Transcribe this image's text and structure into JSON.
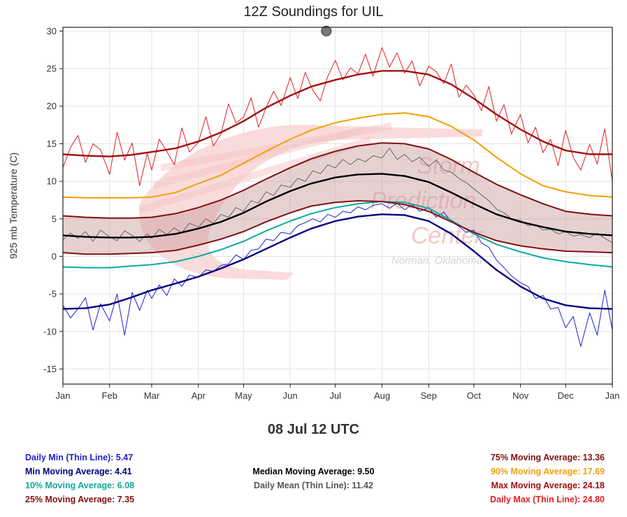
{
  "chart_data": {
    "type": "line",
    "title": "12Z Soundings for UIL",
    "subtitle": "08 Jul 12 UTC",
    "ylabel": "925 mb Temperature (C)",
    "xlabel": "",
    "ylim": [
      -17,
      30.5
    ],
    "yticks": [
      -15,
      -10,
      -5,
      0,
      5,
      10,
      15,
      20,
      25,
      30
    ],
    "xlim_day": [
      0,
      365
    ],
    "months": [
      "Jan",
      "Feb",
      "Mar",
      "Apr",
      "May",
      "Jun",
      "Jul",
      "Aug",
      "Sep",
      "Oct",
      "Nov",
      "Dec",
      "Jan"
    ],
    "grid": true,
    "marker": {
      "day": 175,
      "value": 30.0
    },
    "watermark": [
      "Storm",
      "Prediction",
      "Center",
      "Norman, Oklahoma"
    ],
    "colors": {
      "daily_max": "#e02020",
      "max_ma": "#a01010",
      "p90": "#f5a000",
      "p75": "#801010",
      "median": "#000000",
      "daily_mean": "#666666",
      "p25": "#801010",
      "band": "#c89a9a",
      "p10": "#10a8a0",
      "min_ma": "#000080",
      "daily_min": "#2020d0"
    },
    "series": [
      {
        "name": "Max Moving Average",
        "key": "max_ma",
        "x": [
          0,
          15,
          31,
          45,
          59,
          75,
          90,
          105,
          120,
          135,
          151,
          165,
          181,
          196,
          212,
          227,
          243,
          258,
          273,
          288,
          304,
          319,
          334,
          350,
          365
        ],
        "values": [
          13.6,
          13.4,
          13.3,
          13.5,
          13.9,
          14.4,
          15.3,
          16.5,
          18.0,
          19.8,
          21.4,
          22.6,
          23.5,
          24.2,
          24.7,
          24.7,
          24.2,
          22.9,
          21.0,
          18.9,
          16.9,
          15.3,
          14.1,
          13.6,
          13.6
        ]
      },
      {
        "name": "90% Moving Average",
        "key": "p90",
        "x": [
          0,
          15,
          31,
          45,
          59,
          75,
          90,
          105,
          120,
          135,
          151,
          165,
          181,
          196,
          212,
          227,
          243,
          258,
          273,
          288,
          304,
          319,
          334,
          350,
          365
        ],
        "values": [
          7.9,
          7.8,
          7.8,
          7.8,
          7.9,
          8.5,
          9.7,
          10.8,
          12.4,
          14.0,
          15.6,
          16.8,
          17.8,
          18.4,
          18.9,
          19.1,
          18.6,
          17.3,
          15.5,
          13.2,
          11.0,
          9.4,
          8.6,
          8.1,
          7.9
        ]
      },
      {
        "name": "75% Moving Average",
        "key": "p75",
        "x": [
          0,
          15,
          31,
          45,
          59,
          75,
          90,
          105,
          120,
          135,
          151,
          165,
          181,
          196,
          212,
          227,
          243,
          258,
          273,
          288,
          304,
          319,
          334,
          350,
          365
        ],
        "values": [
          5.4,
          5.2,
          5.1,
          5.1,
          5.2,
          5.7,
          6.5,
          7.5,
          8.8,
          10.3,
          11.8,
          13.0,
          14.0,
          14.7,
          15.1,
          15.0,
          14.3,
          12.9,
          11.2,
          9.6,
          8.2,
          7.0,
          6.0,
          5.6,
          5.4
        ]
      },
      {
        "name": "Median Moving Average",
        "key": "median",
        "x": [
          0,
          15,
          31,
          45,
          59,
          75,
          90,
          105,
          120,
          135,
          151,
          165,
          181,
          196,
          212,
          227,
          243,
          258,
          273,
          288,
          304,
          319,
          334,
          350,
          365
        ],
        "values": [
          2.8,
          2.6,
          2.5,
          2.5,
          2.6,
          3.0,
          3.7,
          4.6,
          5.8,
          7.3,
          8.7,
          9.7,
          10.5,
          10.9,
          11.0,
          10.7,
          9.9,
          8.5,
          7.0,
          5.6,
          4.6,
          3.9,
          3.3,
          3.0,
          2.8
        ]
      },
      {
        "name": "25% Moving Average",
        "key": "p25",
        "x": [
          0,
          15,
          31,
          45,
          59,
          75,
          90,
          105,
          120,
          135,
          151,
          165,
          181,
          196,
          212,
          227,
          243,
          258,
          273,
          288,
          304,
          319,
          334,
          350,
          365
        ],
        "values": [
          0.5,
          0.3,
          0.3,
          0.4,
          0.5,
          0.8,
          1.5,
          2.3,
          3.3,
          4.6,
          5.8,
          6.7,
          7.2,
          7.4,
          7.3,
          6.9,
          6.0,
          4.6,
          3.2,
          2.1,
          1.4,
          1.0,
          0.7,
          0.6,
          0.5
        ]
      },
      {
        "name": "10% Moving Average",
        "key": "p10",
        "x": [
          0,
          15,
          31,
          45,
          59,
          75,
          90,
          105,
          120,
          135,
          151,
          165,
          181,
          196,
          212,
          227,
          243,
          258,
          273,
          288,
          304,
          319,
          334,
          350,
          365
        ],
        "values": [
          -1.4,
          -1.5,
          -1.5,
          -1.3,
          -1.1,
          -0.7,
          0.0,
          0.9,
          2.0,
          3.4,
          4.7,
          5.7,
          6.5,
          7.0,
          7.3,
          7.2,
          6.4,
          4.8,
          3.0,
          1.6,
          0.6,
          -0.2,
          -0.7,
          -1.1,
          -1.4
        ]
      },
      {
        "name": "Min Moving Average",
        "key": "min_ma",
        "x": [
          0,
          15,
          31,
          45,
          59,
          75,
          90,
          105,
          120,
          135,
          151,
          165,
          181,
          196,
          212,
          227,
          243,
          258,
          273,
          288,
          304,
          319,
          334,
          350,
          365
        ],
        "values": [
          -7.0,
          -6.9,
          -6.4,
          -5.5,
          -4.5,
          -3.6,
          -2.7,
          -1.6,
          -0.4,
          1.0,
          2.5,
          3.7,
          4.7,
          5.3,
          5.6,
          5.5,
          4.7,
          3.0,
          0.7,
          -1.8,
          -4.0,
          -5.6,
          -6.5,
          -6.9,
          -7.0
        ]
      },
      {
        "name": "Daily Max (Thin Line)",
        "key": "daily_max",
        "x": [
          0,
          5,
          10,
          15,
          20,
          25,
          31,
          36,
          41,
          46,
          51,
          56,
          59,
          64,
          69,
          74,
          79,
          84,
          90,
          95,
          100,
          105,
          110,
          115,
          120,
          125,
          130,
          135,
          140,
          145,
          151,
          156,
          161,
          166,
          171,
          176,
          181,
          186,
          191,
          196,
          201,
          206,
          212,
          217,
          222,
          227,
          232,
          237,
          243,
          248,
          253,
          258,
          263,
          268,
          273,
          278,
          283,
          288,
          293,
          298,
          304,
          309,
          314,
          319,
          324,
          329,
          334,
          339,
          344,
          350,
          355,
          360,
          365
        ],
        "values": [
          11.8,
          14.5,
          16.1,
          12.5,
          15.0,
          14.2,
          10.9,
          16.5,
          12.8,
          15.1,
          9.4,
          13.7,
          11.5,
          15.6,
          14.0,
          12.2,
          17.1,
          13.9,
          15.2,
          18.6,
          14.7,
          16.3,
          20.3,
          17.8,
          18.5,
          21.1,
          17.2,
          19.8,
          22.0,
          20.1,
          23.8,
          21.0,
          24.5,
          22.1,
          20.7,
          24.0,
          26.1,
          23.5,
          25.1,
          24.3,
          26.9,
          24.0,
          27.8,
          25.2,
          27.1,
          24.4,
          26.0,
          22.7,
          25.3,
          24.6,
          23.0,
          25.6,
          21.2,
          22.8,
          21.5,
          19.4,
          22.6,
          18.0,
          20.2,
          16.3,
          18.9,
          15.1,
          17.2,
          13.8,
          15.6,
          12.1,
          16.8,
          13.2,
          11.5,
          14.9,
          12.3,
          17.0,
          10.0
        ]
      },
      {
        "name": "Daily Mean (Thin Line)",
        "key": "daily_mean",
        "x": [
          0,
          5,
          10,
          15,
          20,
          25,
          31,
          36,
          41,
          46,
          51,
          56,
          59,
          64,
          69,
          74,
          79,
          84,
          90,
          95,
          100,
          105,
          110,
          115,
          120,
          125,
          130,
          135,
          140,
          145,
          151,
          156,
          161,
          166,
          171,
          176,
          181,
          186,
          191,
          196,
          201,
          206,
          212,
          217,
          222,
          227,
          232,
          237,
          243,
          248,
          253,
          258,
          263,
          268,
          273,
          278,
          283,
          288,
          293,
          298,
          304,
          309,
          314,
          319,
          324,
          329,
          334,
          339,
          344,
          350,
          355,
          360,
          365
        ],
        "values": [
          2.2,
          3.1,
          2.4,
          3.3,
          2.0,
          3.5,
          2.6,
          2.1,
          3.4,
          2.8,
          2.0,
          3.0,
          2.4,
          3.6,
          2.9,
          3.8,
          3.1,
          4.4,
          3.9,
          5.0,
          4.4,
          5.6,
          5.2,
          6.5,
          6.0,
          7.4,
          7.1,
          8.6,
          8.1,
          9.5,
          9.2,
          10.4,
          10.0,
          11.4,
          11.0,
          12.2,
          11.8,
          12.9,
          12.2,
          13.0,
          12.6,
          13.4,
          13.1,
          14.4,
          12.9,
          13.6,
          12.6,
          13.2,
          12.0,
          12.8,
          11.5,
          11.2,
          10.4,
          9.8,
          9.0,
          8.2,
          7.4,
          6.3,
          5.8,
          5.0,
          4.8,
          4.1,
          4.2,
          3.5,
          3.6,
          3.0,
          3.3,
          2.7,
          2.9,
          2.5,
          3.1,
          2.4,
          1.8
        ]
      },
      {
        "name": "Daily Min (Thin Line)",
        "key": "daily_min",
        "x": [
          0,
          5,
          10,
          15,
          20,
          25,
          31,
          36,
          41,
          46,
          51,
          56,
          59,
          64,
          69,
          74,
          79,
          84,
          90,
          95,
          100,
          105,
          110,
          115,
          120,
          125,
          130,
          135,
          140,
          145,
          151,
          156,
          161,
          166,
          171,
          176,
          181,
          186,
          191,
          196,
          201,
          206,
          212,
          217,
          222,
          227,
          232,
          237,
          243,
          248,
          253,
          258,
          263,
          268,
          273,
          278,
          283,
          288,
          293,
          298,
          304,
          309,
          314,
          319,
          324,
          329,
          334,
          339,
          344,
          350,
          355,
          360,
          365
        ],
        "values": [
          -6.5,
          -8.2,
          -7.0,
          -5.5,
          -9.8,
          -6.3,
          -8.6,
          -5.0,
          -10.5,
          -4.8,
          -7.2,
          -4.5,
          -5.6,
          -3.8,
          -5.2,
          -3.0,
          -4.0,
          -2.5,
          -2.8,
          -1.8,
          -2.0,
          -1.2,
          -1.0,
          0.2,
          -0.4,
          0.8,
          1.0,
          2.3,
          2.1,
          3.2,
          3.0,
          4.1,
          4.5,
          5.0,
          4.6,
          5.6,
          5.2,
          6.0,
          5.8,
          6.6,
          6.2,
          6.8,
          7.0,
          6.4,
          7.1,
          6.2,
          6.9,
          6.0,
          6.5,
          5.2,
          5.9,
          4.6,
          4.0,
          3.2,
          3.5,
          1.8,
          1.2,
          -0.5,
          -1.5,
          -2.6,
          -3.5,
          -4.0,
          -5.6,
          -5.2,
          -7.0,
          -6.8,
          -9.5,
          -8.0,
          -12.0,
          -7.5,
          -10.5,
          -4.5,
          -9.8
        ]
      }
    ]
  },
  "legend": {
    "daily_min": {
      "label": "Daily Min (Thin Line):",
      "value": "5.47"
    },
    "min_ma": {
      "label": "Min Moving Average:",
      "value": "4.41"
    },
    "p10": {
      "label": "10% Moving Average:",
      "value": "6.08"
    },
    "p25": {
      "label": "25% Moving Average:",
      "value": "7.35"
    },
    "median": {
      "label": "Median Moving Average:",
      "value": "9.50"
    },
    "daily_mean": {
      "label": "Daily Mean (Thin Line):",
      "value": "11.42"
    },
    "p75": {
      "label": "75% Moving Average:",
      "value": "13.36"
    },
    "p90": {
      "label": "90% Moving Average:",
      "value": "17.69"
    },
    "max_ma": {
      "label": "Max Moving Average:",
      "value": "24.18"
    },
    "daily_max": {
      "label": "Daily Max (Thin Line):",
      "value": "24.80"
    }
  }
}
